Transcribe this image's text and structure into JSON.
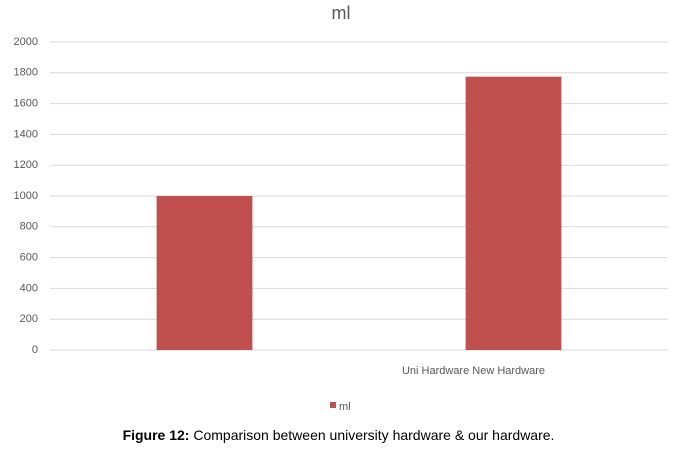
{
  "chart_data": {
    "type": "bar",
    "title": "ml",
    "categories": [
      null,
      "Uni Hardware New Hardware"
    ],
    "series": [
      {
        "name": "ml",
        "color": "#c0504d",
        "values": [
          1000,
          1775
        ]
      }
    ],
    "ylim": [
      0,
      2000
    ],
    "yticks": [
      0,
      200,
      400,
      600,
      800,
      1000,
      1200,
      1400,
      1600,
      1800,
      2000
    ],
    "grid": true,
    "legend": "bottom"
  },
  "caption": {
    "label": "Figure 12:",
    "text": "Comparison between university hardware & our hardware."
  }
}
